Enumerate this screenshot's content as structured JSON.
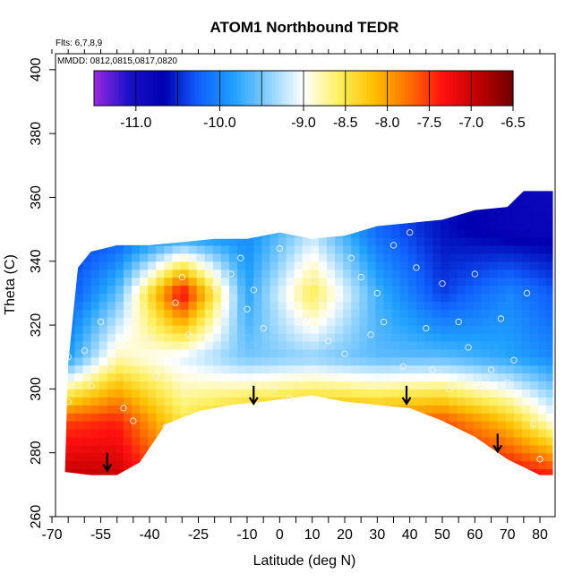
{
  "chart_data": {
    "type": "heatmap",
    "title": "ATOM1 Northbound TEDR",
    "notes": [
      "Flts: 6,7,8,9",
      "MMDD: 0812,0815,0817,0820"
    ],
    "xlabel": "Latitude (deg N)",
    "ylabel": "Theta (C)",
    "xlim": [
      -70,
      85
    ],
    "ylim": [
      260,
      405
    ],
    "xticks": [
      -70,
      -55,
      -40,
      -25,
      -10,
      0,
      10,
      20,
      30,
      40,
      50,
      60,
      70,
      80
    ],
    "xtick_labels": [
      "-70",
      "-55",
      "-40",
      "-25",
      "-10",
      "0",
      "10",
      "20",
      "30",
      "40",
      "50",
      "60",
      "70",
      "80"
    ],
    "xminor_ticks": [
      -65,
      -60,
      -50,
      -45,
      -35,
      -30,
      -20,
      -15,
      -5,
      5,
      15,
      25,
      35,
      45,
      55,
      65,
      75,
      85
    ],
    "yticks": [
      260,
      280,
      300,
      320,
      340,
      360,
      380,
      400
    ],
    "ytick_labels": [
      "260",
      "280",
      "300",
      "320",
      "340",
      "360",
      "380",
      "400"
    ],
    "colorbar": {
      "range": [
        -11.5,
        -6.5
      ],
      "ticks": [
        -11.0,
        -10.0,
        -9.0,
        -8.5,
        -8.0,
        -7.5,
        -7.0,
        -6.5
      ],
      "tick_labels": [
        "-11.0",
        "-10.0",
        "-9.0",
        "-8.5",
        "-8.0",
        "-7.5",
        "-7.0",
        "-6.5"
      ],
      "colors": [
        "#9a2ae0",
        "#1a10c8",
        "#0000b0",
        "#1060ff",
        "#20a0ff",
        "#8ad0ff",
        "#ffffff",
        "#fff060",
        "#ffc000",
        "#ff7000",
        "#ff1010",
        "#c00000",
        "#700000"
      ]
    },
    "upper_boundary": [
      [
        -65,
        308
      ],
      [
        -62,
        338
      ],
      [
        -58,
        343
      ],
      [
        -50,
        345
      ],
      [
        -40,
        345
      ],
      [
        -30,
        346
      ],
      [
        -20,
        347
      ],
      [
        -10,
        347
      ],
      [
        0,
        349
      ],
      [
        10,
        347
      ],
      [
        20,
        348
      ],
      [
        30,
        351
      ],
      [
        40,
        352
      ],
      [
        50,
        353
      ],
      [
        60,
        356
      ],
      [
        70,
        357
      ],
      [
        75,
        362
      ]
    ],
    "lower_boundary": [
      [
        -66,
        274
      ],
      [
        -58,
        273
      ],
      [
        -50,
        273
      ],
      [
        -43,
        277
      ],
      [
        -35,
        289
      ],
      [
        -25,
        293
      ],
      [
        -15,
        295
      ],
      [
        -5,
        296
      ],
      [
        10,
        298
      ],
      [
        20,
        296
      ],
      [
        30,
        295
      ],
      [
        40,
        294
      ],
      [
        50,
        290
      ],
      [
        60,
        285
      ],
      [
        70,
        278
      ],
      [
        80,
        273
      ]
    ],
    "grid_x": [
      -70,
      -50,
      -30,
      -10,
      10,
      30,
      50,
      70,
      85
    ],
    "grid_y": [
      270,
      290,
      310,
      330,
      350,
      365
    ],
    "grid_values": [
      [
        -6.8,
        -6.9,
        -7.8,
        -7.5,
        -7.2,
        -7.0,
        -7.0,
        -7.0,
        -7.1
      ],
      [
        -7.6,
        -7.4,
        -8.5,
        -8.0,
        -7.8,
        -7.8,
        -7.6,
        -8.2,
        -9.0
      ],
      [
        -10.2,
        -8.8,
        -9.1,
        -9.5,
        -9.4,
        -9.6,
        -9.6,
        -9.8,
        -10.0
      ],
      [
        -10.6,
        -9.6,
        -7.2,
        -9.8,
        -8.5,
        -9.7,
        -10.4,
        -10.0,
        -10.3
      ],
      [
        -10.5,
        -10.4,
        -10.2,
        -10.0,
        -9.3,
        -10.2,
        -10.6,
        -10.8,
        -10.8
      ],
      [
        -10.6,
        -10.4,
        -10.1,
        -10.0,
        -9.4,
        -10.1,
        -10.5,
        -10.8,
        -10.9
      ]
    ],
    "observations": [
      [
        -65,
        310
      ],
      [
        -65,
        296
      ],
      [
        -60,
        312
      ],
      [
        -58,
        301
      ],
      [
        -55,
        321
      ],
      [
        -52,
        307
      ],
      [
        -50,
        310
      ],
      [
        -48,
        294
      ],
      [
        -45,
        290
      ],
      [
        -40,
        316
      ],
      [
        -38,
        304
      ],
      [
        -35,
        288
      ],
      [
        -32,
        327
      ],
      [
        -30,
        335
      ],
      [
        -28,
        317
      ],
      [
        -25,
        341
      ],
      [
        -20,
        332
      ],
      [
        -18,
        325
      ],
      [
        -15,
        336
      ],
      [
        -12,
        341
      ],
      [
        -10,
        325
      ],
      [
        -8,
        331
      ],
      [
        -5,
        319
      ],
      [
        -2,
        300
      ],
      [
        0,
        344
      ],
      [
        3,
        297
      ],
      [
        6,
        320
      ],
      [
        8,
        322
      ],
      [
        10,
        334
      ],
      [
        12,
        328
      ],
      [
        15,
        315
      ],
      [
        18,
        328
      ],
      [
        20,
        311
      ],
      [
        22,
        341
      ],
      [
        25,
        335
      ],
      [
        28,
        317
      ],
      [
        30,
        330
      ],
      [
        32,
        321
      ],
      [
        35,
        345
      ],
      [
        38,
        307
      ],
      [
        40,
        349
      ],
      [
        42,
        338
      ],
      [
        45,
        319
      ],
      [
        47,
        306
      ],
      [
        50,
        333
      ],
      [
        52,
        300
      ],
      [
        55,
        321
      ],
      [
        58,
        313
      ],
      [
        60,
        336
      ],
      [
        62,
        300
      ],
      [
        65,
        306
      ],
      [
        68,
        322
      ],
      [
        70,
        302
      ],
      [
        72,
        309
      ],
      [
        74,
        295
      ],
      [
        76,
        330
      ],
      [
        78,
        289
      ],
      [
        80,
        278
      ]
    ],
    "arrows": [
      [
        -53,
        280
      ],
      [
        -8,
        301
      ],
      [
        39,
        301
      ],
      [
        67,
        286
      ]
    ]
  }
}
